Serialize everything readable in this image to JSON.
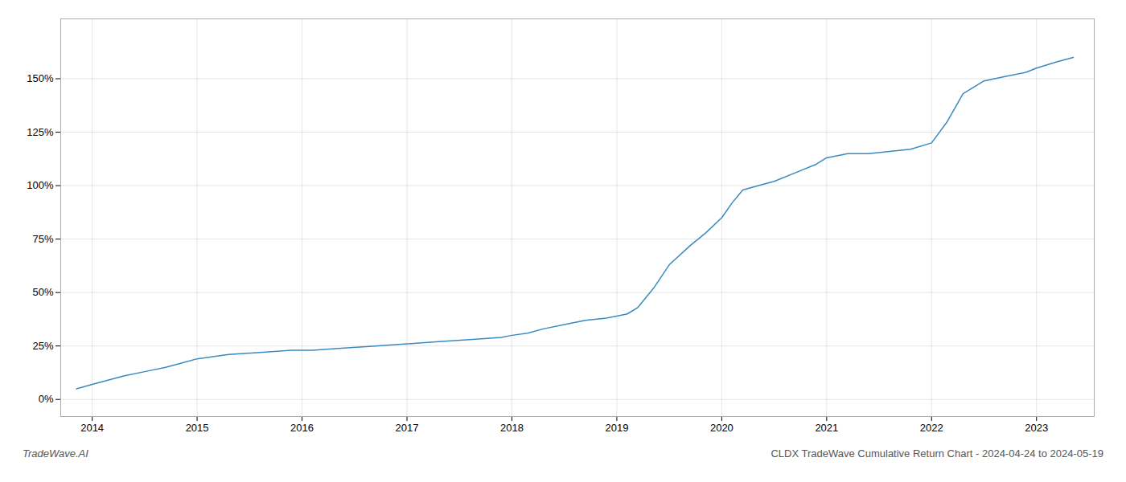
{
  "chart_data": {
    "type": "line",
    "annotations": [
      "TradeWave.AI",
      "CLDX TradeWave Cumulative Return Chart - 2024-04-24 to 2024-05-19"
    ],
    "x": [
      2013.85,
      2014.0,
      2014.15,
      2014.3,
      2014.5,
      2014.7,
      2014.85,
      2015.0,
      2015.3,
      2015.6,
      2015.9,
      2016.1,
      2016.4,
      2016.7,
      2017.0,
      2017.3,
      2017.6,
      2017.9,
      2018.0,
      2018.15,
      2018.3,
      2018.5,
      2018.7,
      2018.9,
      2019.0,
      2019.1,
      2019.2,
      2019.35,
      2019.5,
      2019.7,
      2019.85,
      2020.0,
      2020.1,
      2020.2,
      2020.35,
      2020.5,
      2020.7,
      2020.9,
      2021.0,
      2021.2,
      2021.4,
      2021.6,
      2021.8,
      2022.0,
      2022.15,
      2022.3,
      2022.5,
      2022.7,
      2022.9,
      2023.0,
      2023.2,
      2023.35
    ],
    "values": [
      5,
      7,
      9,
      11,
      13,
      15,
      17,
      19,
      21,
      22,
      23,
      23,
      24,
      25,
      26,
      27,
      28,
      29,
      30,
      31,
      33,
      35,
      37,
      38,
      39,
      40,
      43,
      52,
      63,
      72,
      78,
      85,
      92,
      98,
      100,
      102,
      106,
      110,
      113,
      115,
      115,
      116,
      117,
      120,
      130,
      143,
      149,
      151,
      153,
      155,
      158,
      160
    ],
    "color": "#3a8abf",
    "xlim": [
      2013.7,
      2023.55
    ],
    "xticks": [
      2014,
      2015,
      2016,
      2017,
      2018,
      2019,
      2020,
      2021,
      2022,
      2023
    ],
    "ylim": [
      -8,
      178
    ],
    "yticks": [
      {
        "value": 0,
        "label": "0%"
      },
      {
        "value": 25,
        "label": "25%"
      },
      {
        "value": 50,
        "label": "50%"
      },
      {
        "value": 75,
        "label": "75%"
      },
      {
        "value": 100,
        "label": "100%"
      },
      {
        "value": 125,
        "label": "125%"
      },
      {
        "value": 150,
        "label": "150%"
      }
    ],
    "grid": true
  }
}
